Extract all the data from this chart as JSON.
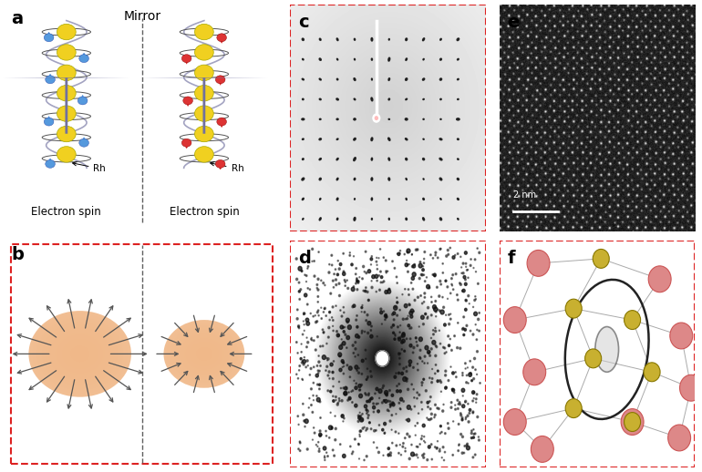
{
  "panel_label_fontsize": 14,
  "panel_label_weight": "bold",
  "background_color": "#ffffff",
  "fig_width": 7.7,
  "fig_height": 5.18,
  "mirror_label": "Mirror",
  "mirror_fontsize": 10,
  "electron_spin_label": "Electron spin",
  "electron_spin_fontsize": 8.5,
  "scale_bar_label": "2 nm",
  "yellow_color": "#f0d020",
  "blue_color": "#5599dd",
  "red_color": "#dd3333",
  "gray_arrow_color": "#7070a0",
  "helix_color": "#9999bb",
  "dashed_line_color": "#444444",
  "red_dashed_box_color": "#dd2222",
  "peach_color": "#f0b888",
  "pink_atom_color": "#dd8888",
  "olive_atom_color": "#c8b030",
  "panel_c_bg": "#d8d8d8",
  "panel_d_bg": "#d8d8d8"
}
